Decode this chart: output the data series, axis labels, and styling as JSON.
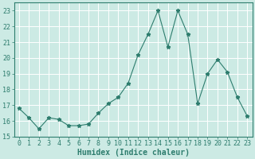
{
  "x": [
    0,
    1,
    2,
    3,
    4,
    5,
    6,
    7,
    8,
    9,
    10,
    11,
    12,
    13,
    14,
    15,
    16,
    17,
    18,
    19,
    20,
    21,
    22,
    23
  ],
  "y": [
    16.8,
    16.2,
    15.5,
    16.2,
    16.1,
    15.7,
    15.7,
    15.8,
    16.5,
    17.1,
    17.5,
    18.4,
    20.2,
    21.5,
    23.0,
    20.7,
    23.0,
    21.5,
    17.1,
    19.0,
    19.9,
    19.1,
    17.5,
    16.3
  ],
  "line_color": "#2e7d6e",
  "marker": "*",
  "marker_size": 3.5,
  "bg_color": "#cceae4",
  "grid_color": "#ffffff",
  "tick_color": "#2e7d6e",
  "xlabel": "Humidex (Indice chaleur)",
  "xlabel_fontsize": 7,
  "ylabel_ticks": [
    15,
    16,
    17,
    18,
    19,
    20,
    21,
    22,
    23
  ],
  "xlim": [
    -0.5,
    23.5
  ],
  "ylim": [
    15,
    23.5
  ],
  "tick_fontsize": 6,
  "font_family": "monospace"
}
